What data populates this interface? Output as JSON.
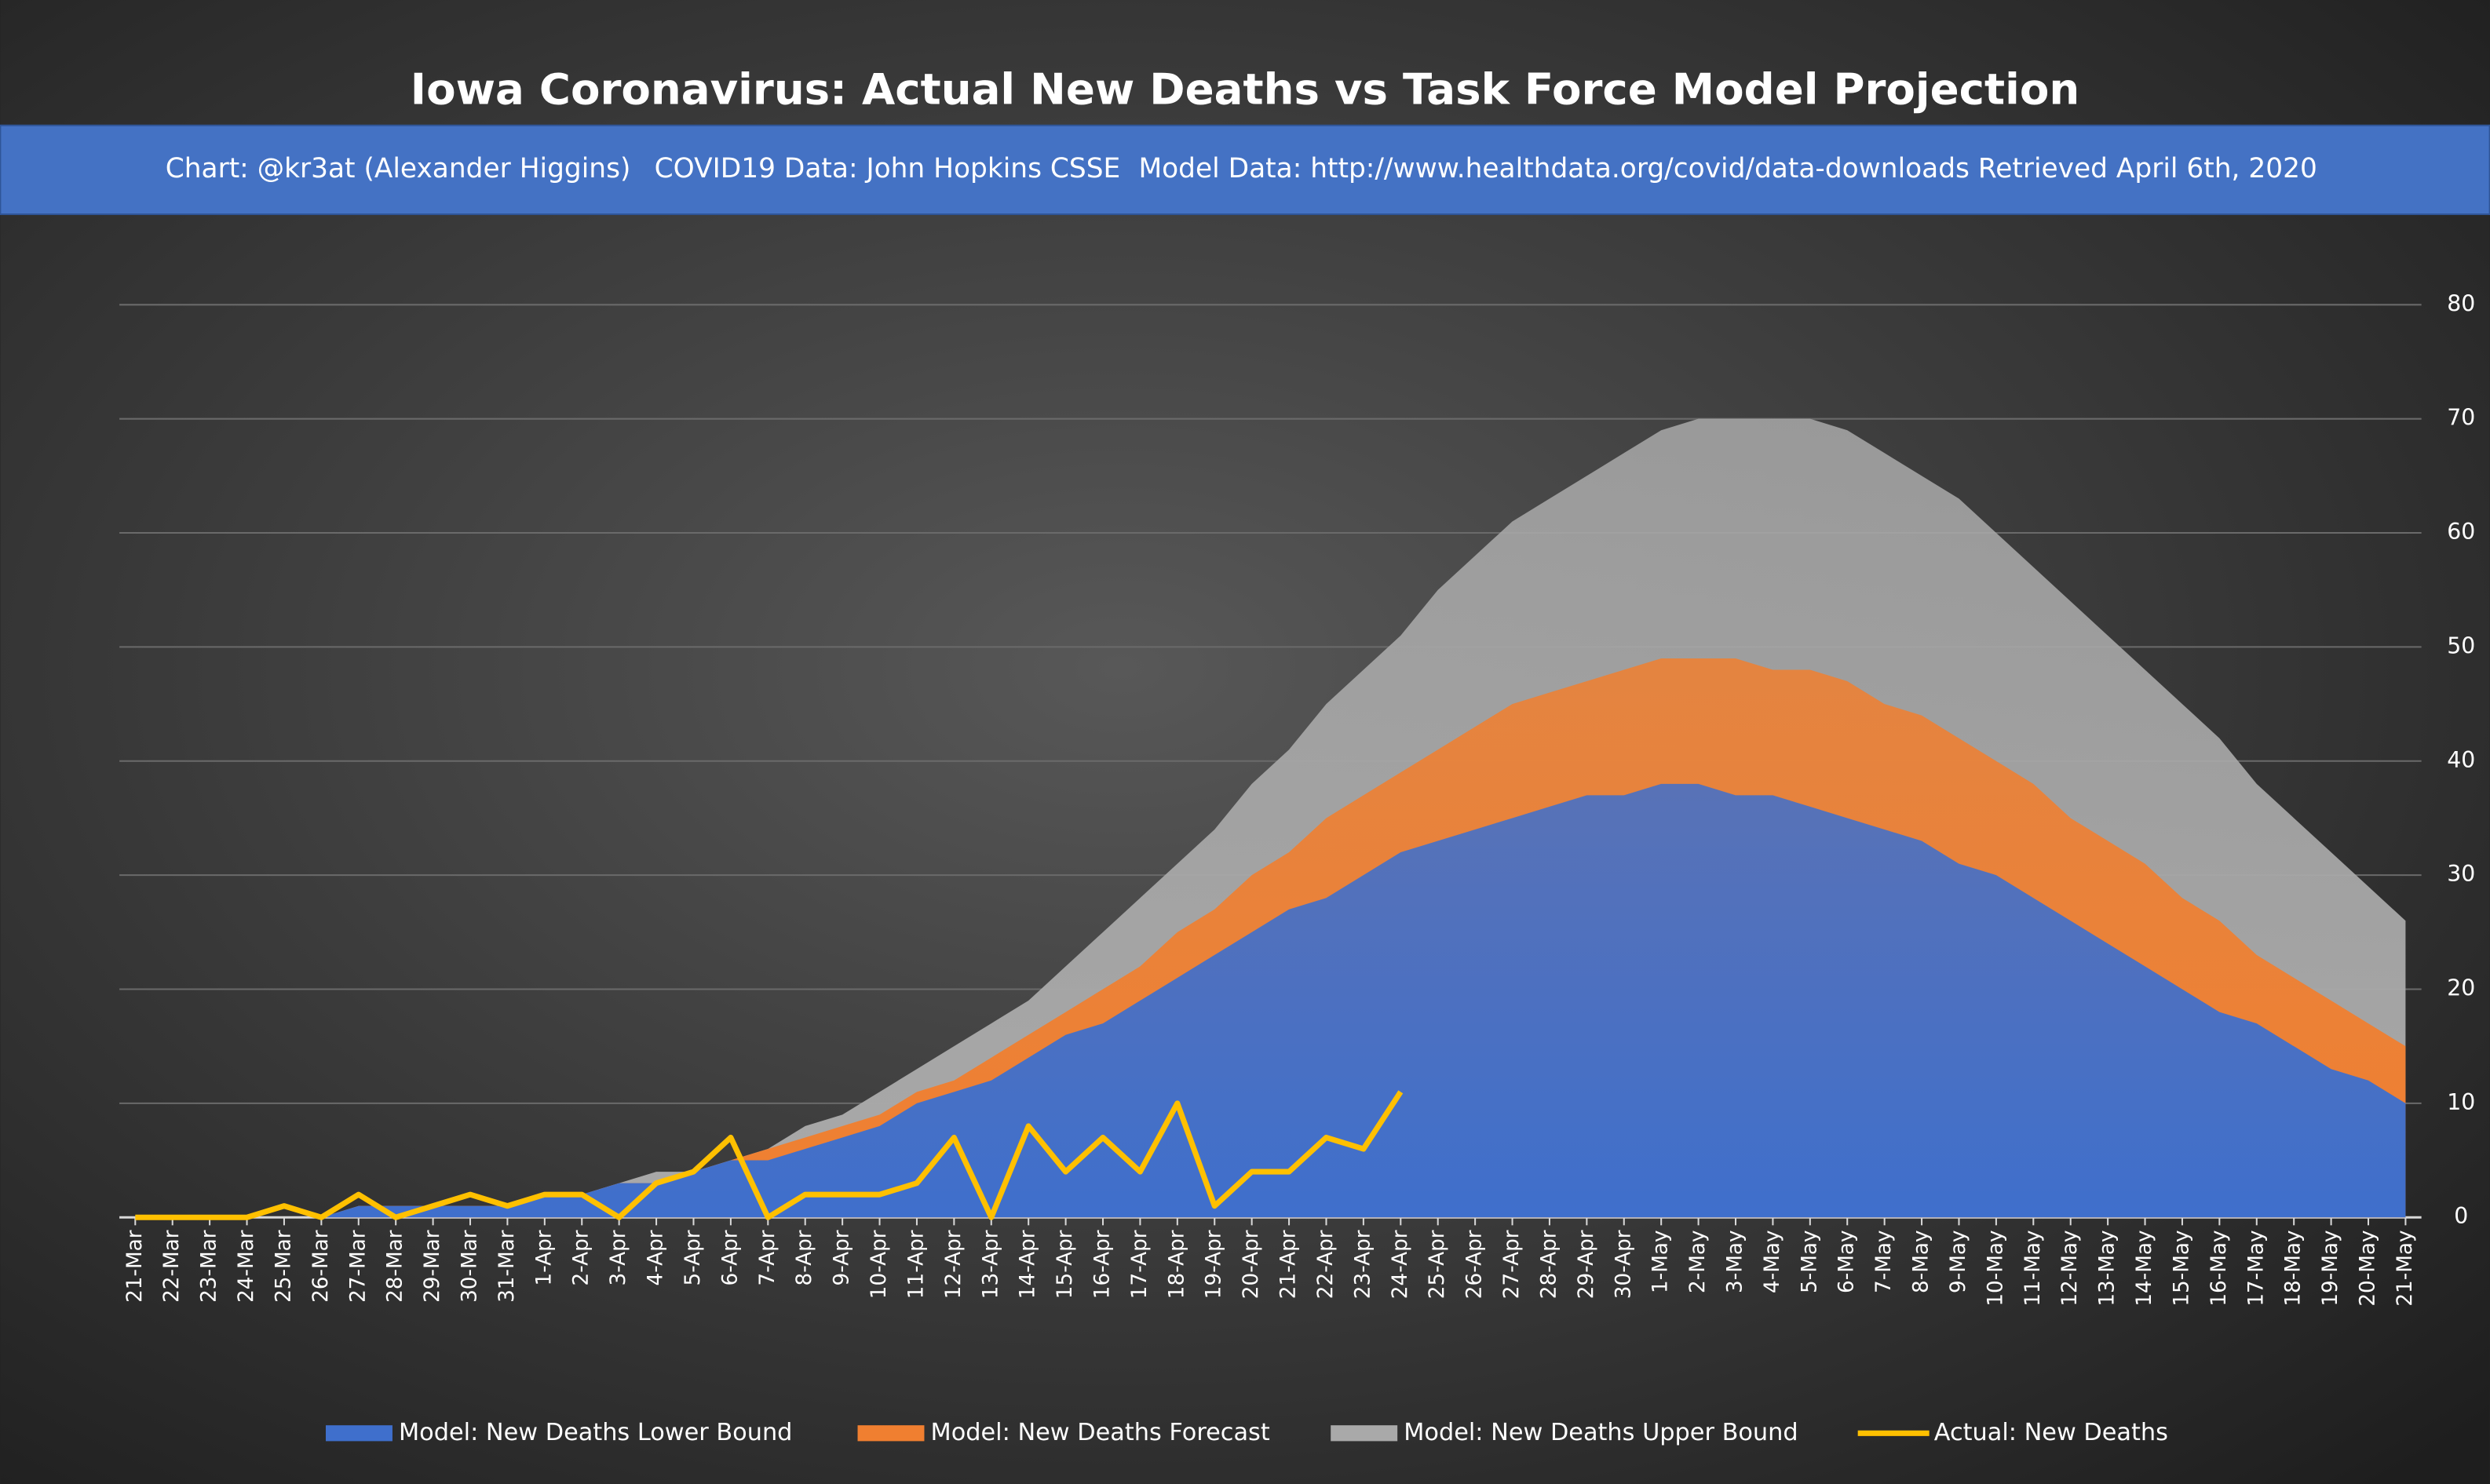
{
  "chart_data": {
    "type": "area",
    "title": "Iowa Coronavirus: Actual New Deaths vs Task Force Model Projection",
    "subtitle": [
      "Chart: @kr3at (Alexander Higgins)",
      "COVID19 Data: John Hopkins CSSE",
      "Model Data: http://www.healthdata.org/covid/data-downloads Retrieved April 6th, 2020"
    ],
    "categories": [
      "21-Mar",
      "22-Mar",
      "23-Mar",
      "24-Mar",
      "25-Mar",
      "26-Mar",
      "27-Mar",
      "28-Mar",
      "29-Mar",
      "30-Mar",
      "31-Mar",
      "1-Apr",
      "2-Apr",
      "3-Apr",
      "4-Apr",
      "5-Apr",
      "6-Apr",
      "7-Apr",
      "8-Apr",
      "9-Apr",
      "10-Apr",
      "11-Apr",
      "12-Apr",
      "13-Apr",
      "14-Apr",
      "15-Apr",
      "16-Apr",
      "17-Apr",
      "18-Apr",
      "19-Apr",
      "20-Apr",
      "21-Apr",
      "22-Apr",
      "23-Apr",
      "24-Apr",
      "25-Apr",
      "26-Apr",
      "27-Apr",
      "28-Apr",
      "29-Apr",
      "30-Apr",
      "1-May",
      "2-May",
      "3-May",
      "4-May",
      "5-May",
      "6-May",
      "7-May",
      "8-May",
      "9-May",
      "10-May",
      "11-May",
      "12-May",
      "13-May",
      "14-May",
      "15-May",
      "16-May",
      "17-May",
      "18-May",
      "19-May",
      "20-May",
      "21-May"
    ],
    "series": [
      {
        "name": "Model: New Deaths Lower Bound",
        "color": "#3f6fcc",
        "kind": "area",
        "values": [
          0,
          0,
          0,
          0,
          0,
          0,
          1,
          1,
          1,
          1,
          1,
          2,
          2,
          3,
          3,
          4,
          5,
          5,
          6,
          7,
          8,
          10,
          11,
          12,
          14,
          16,
          17,
          19,
          21,
          23,
          25,
          27,
          28,
          30,
          32,
          33,
          34,
          35,
          36,
          37,
          37,
          38,
          38,
          37,
          37,
          36,
          35,
          34,
          33,
          31,
          30,
          28,
          26,
          24,
          22,
          20,
          18,
          17,
          15,
          13,
          12,
          10
        ]
      },
      {
        "name": "Model: New Deaths Forecast",
        "color": "#f07f30",
        "kind": "area",
        "values": [
          0,
          0,
          0,
          0,
          0,
          0,
          1,
          1,
          1,
          1,
          1,
          2,
          2,
          3,
          3,
          4,
          5,
          6,
          7,
          8,
          9,
          11,
          12,
          14,
          16,
          18,
          20,
          22,
          25,
          27,
          30,
          32,
          35,
          37,
          39,
          41,
          43,
          45,
          46,
          47,
          48,
          49,
          49,
          49,
          48,
          48,
          47,
          45,
          44,
          42,
          40,
          38,
          35,
          33,
          31,
          28,
          26,
          23,
          21,
          19,
          17,
          15
        ]
      },
      {
        "name": "Model: New Deaths Upper Bound",
        "color": "#a9a9a9",
        "kind": "area",
        "values": [
          0,
          0,
          0,
          0,
          0,
          0,
          1,
          1,
          1,
          1,
          1,
          2,
          2,
          3,
          4,
          4,
          5,
          6,
          8,
          9,
          11,
          13,
          15,
          17,
          19,
          22,
          25,
          28,
          31,
          34,
          38,
          41,
          45,
          48,
          51,
          55,
          58,
          61,
          63,
          65,
          67,
          69,
          70,
          70,
          70,
          70,
          69,
          67,
          65,
          63,
          60,
          57,
          54,
          51,
          48,
          45,
          42,
          38,
          35,
          32,
          29,
          26
        ]
      },
      {
        "name": "Actual: New Deaths",
        "color": "#ffc000",
        "kind": "line",
        "values": [
          0,
          0,
          0,
          0,
          1,
          0,
          2,
          0,
          1,
          2,
          1,
          2,
          2,
          0,
          3,
          4,
          7,
          0,
          2,
          2,
          2,
          3,
          7,
          0,
          8,
          4,
          7,
          4,
          10,
          1,
          4,
          4,
          7,
          6,
          11,
          null,
          null,
          null,
          null,
          null,
          null,
          null,
          null,
          null,
          null,
          null,
          null,
          null,
          null,
          null,
          null,
          null,
          null,
          null,
          null,
          null,
          null,
          null,
          null,
          null,
          null,
          null
        ]
      }
    ],
    "ylim": [
      0,
      80
    ],
    "yticks": [
      0,
      10,
      20,
      30,
      40,
      50,
      60,
      70,
      80
    ],
    "grid": true
  }
}
